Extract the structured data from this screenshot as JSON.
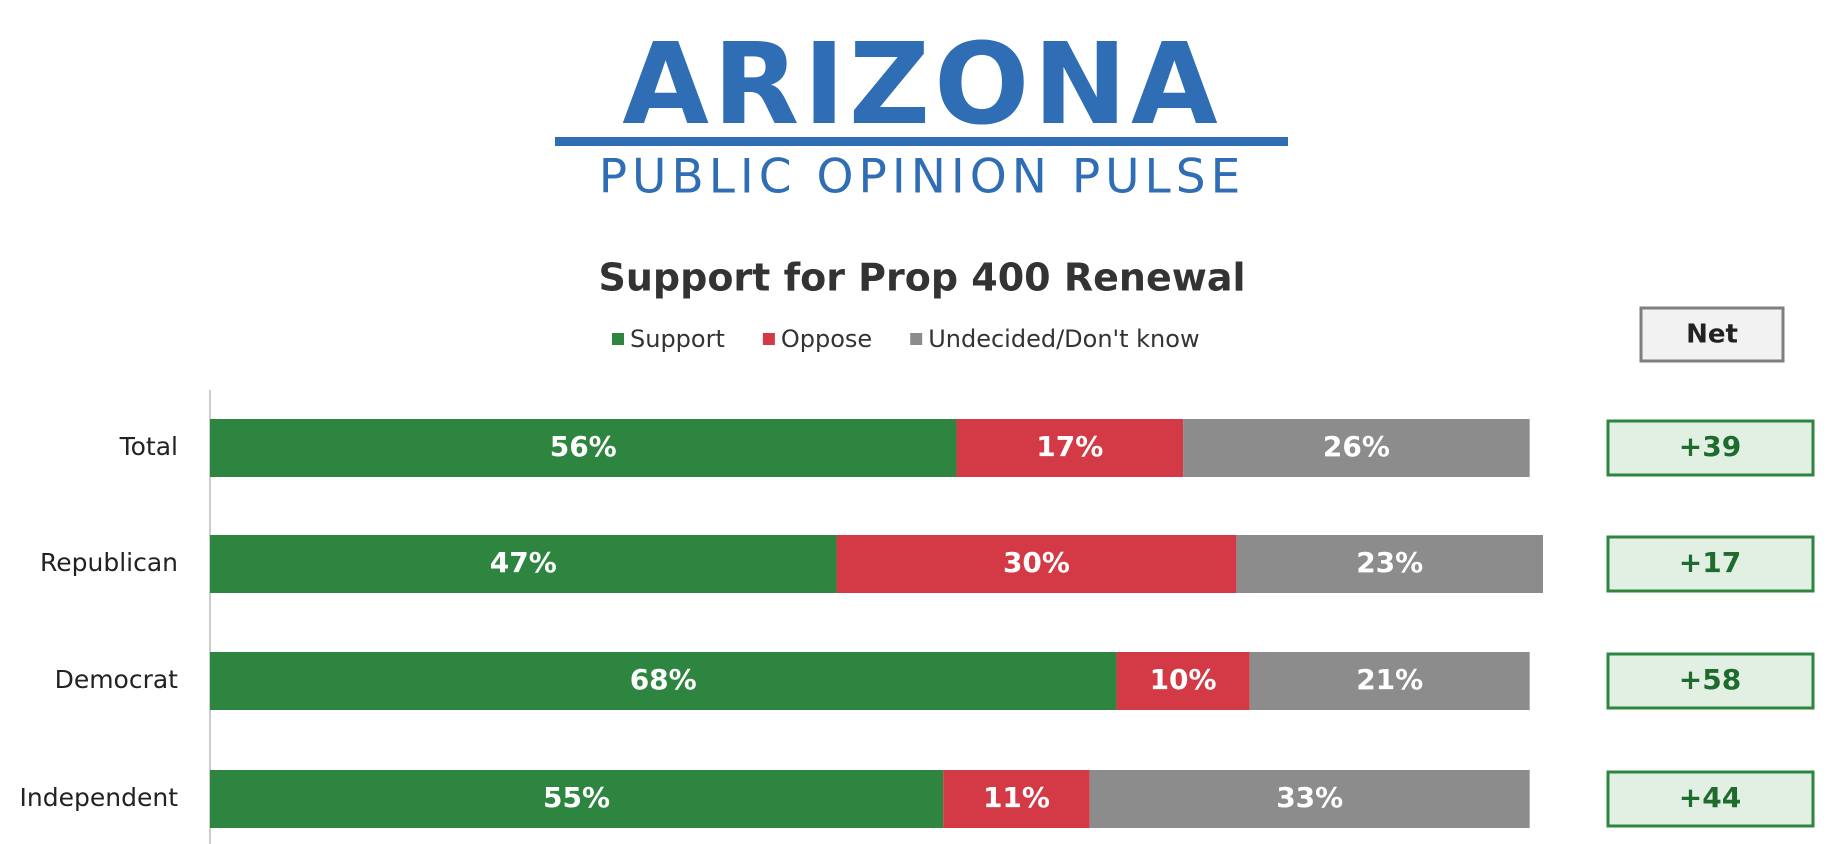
{
  "header": {
    "title": "ARIZONA",
    "subtitle": "PUBLIC OPINION PULSE"
  },
  "chart_data": {
    "type": "stacked-barh",
    "title": "Support for Prop 400 Renewal",
    "categories": [
      "Total",
      "Republican",
      "Democrat",
      "Independent"
    ],
    "xlim": [
      0,
      100
    ],
    "legend": "top",
    "series": [
      {
        "name": "Support",
        "color": "#2e8540",
        "values": [
          56,
          47,
          68,
          55
        ],
        "value_labels": [
          "56%",
          "47%",
          "68%",
          "55%"
        ]
      },
      {
        "name": "Oppose",
        "color": "#d33a45",
        "values": [
          17,
          30,
          10,
          11
        ],
        "value_labels": [
          "17%",
          "30%",
          "10%",
          "11%"
        ]
      },
      {
        "name": "Undecided/Don't know",
        "color": "#8c8c8c",
        "values": [
          26,
          23,
          21,
          33
        ],
        "value_labels": [
          "26%",
          "23%",
          "21%",
          "33%"
        ]
      }
    ],
    "net": {
      "title": "Net",
      "color": "#2e8540",
      "values": [
        39,
        17,
        58,
        44
      ],
      "value_labels": [
        "+39",
        "+17",
        "+58",
        "+44"
      ]
    }
  }
}
